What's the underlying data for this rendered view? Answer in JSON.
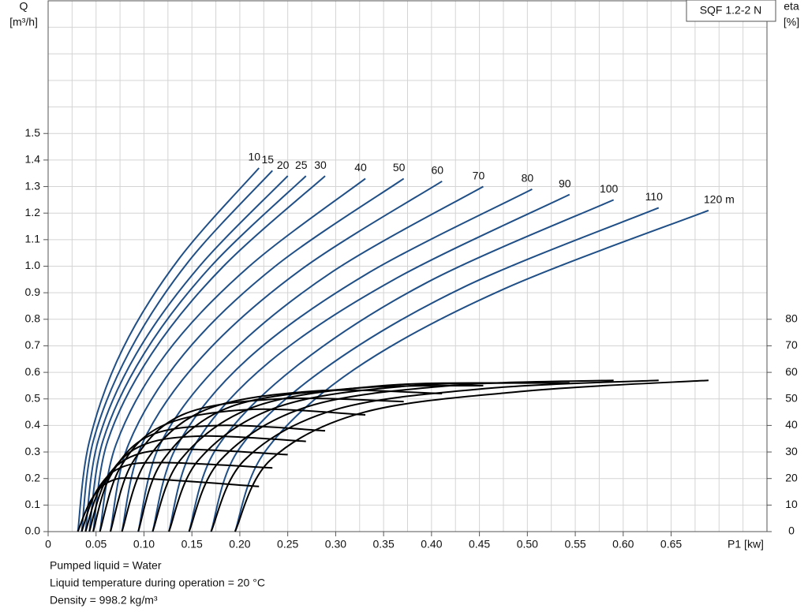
{
  "chart_data": {
    "type": "line",
    "title": "SQF 1.2-2 N",
    "ylabel": "Q",
    "ylabel_unit": "[m³/h]",
    "y2label": "eta",
    "y2label_unit": "[%]",
    "xlabel": "P1 [kw]",
    "xlim": [
      0,
      0.75
    ],
    "ylim": [
      0,
      2.0
    ],
    "y2lim": [
      0,
      200
    ],
    "xticks": [
      0,
      0.05,
      {
        "value": 0.1,
        "label": "0.10"
      },
      0.15,
      {
        "value": 0.2,
        "label": "0.20"
      },
      0.25,
      {
        "value": 0.3,
        "label": "0.30"
      },
      0.35,
      {
        "value": 0.4,
        "label": "0.40"
      },
      0.45,
      {
        "value": 0.5,
        "label": "0.50"
      },
      0.55,
      {
        "value": 0.6,
        "label": "0.60"
      },
      0.65
    ],
    "yticks": [
      {
        "value": 0,
        "label": "0.0"
      },
      0.1,
      0.2,
      0.3,
      0.4,
      0.5,
      0.6,
      0.7,
      0.8,
      0.9,
      {
        "value": 1,
        "label": "1.0"
      },
      1.1,
      1.2,
      1.3,
      1.4,
      1.5
    ],
    "y2ticks": [
      0,
      10,
      20,
      30,
      40,
      50,
      60,
      70,
      80
    ],
    "grid": true,
    "xgrid": [
      0,
      0.025,
      0.05,
      0.075,
      0.1,
      0.125,
      0.15,
      0.175,
      0.2,
      0.225,
      0.25,
      0.275,
      0.3,
      0.325,
      0.35,
      0.375,
      0.4,
      0.425,
      0.45,
      0.475,
      0.5,
      0.525,
      0.55,
      0.575,
      0.6,
      0.625,
      0.65,
      0.675,
      0.7,
      0.725,
      0.75
    ],
    "ygrid": [
      0,
      0.1,
      0.2,
      0.3,
      0.4,
      0.5,
      0.6,
      0.7,
      0.8,
      0.9,
      1,
      1.1,
      1.2,
      1.3,
      1.4,
      1.5,
      1.6,
      1.7,
      1.8,
      1.9,
      2.0
    ],
    "series": [
      {
        "name": "10",
        "color": "#1f4f86",
        "x": [
          0.031,
          0.043,
          0.078,
          0.137,
          0.22
        ],
        "values": [
          0,
          0.34,
          0.69,
          1.03,
          1.37
        ]
      },
      {
        "name": "15",
        "color": "#1f4f86",
        "x": [
          0.035,
          0.047,
          0.085,
          0.147,
          0.234
        ],
        "values": [
          0,
          0.34,
          0.68,
          1.02,
          1.36
        ]
      },
      {
        "name": "20",
        "color": "#1f4f86",
        "x": [
          0.039,
          0.052,
          0.092,
          0.158,
          0.25
        ],
        "values": [
          0,
          0.34,
          0.67,
          1.0,
          1.34
        ]
      },
      {
        "name": "25",
        "color": "#1f4f86",
        "x": [
          0.043,
          0.057,
          0.1,
          0.17,
          0.269
        ],
        "values": [
          0,
          0.34,
          0.67,
          1.0,
          1.34
        ]
      },
      {
        "name": "30",
        "color": "#1f4f86",
        "x": [
          0.047,
          0.062,
          0.108,
          0.183,
          0.289
        ],
        "values": [
          0,
          0.34,
          0.67,
          1.0,
          1.34
        ]
      },
      {
        "name": "40",
        "color": "#1f4f86",
        "x": [
          0.054,
          0.071,
          0.123,
          0.21,
          0.331
        ],
        "values": [
          0,
          0.33,
          0.67,
          1.0,
          1.33
        ]
      },
      {
        "name": "50",
        "color": "#1f4f86",
        "x": [
          0.065,
          0.084,
          0.142,
          0.237,
          0.371
        ],
        "values": [
          0,
          0.33,
          0.67,
          1.0,
          1.33
        ]
      },
      {
        "name": "60",
        "color": "#1f4f86",
        "x": [
          0.077,
          0.098,
          0.161,
          0.265,
          0.411
        ],
        "values": [
          0,
          0.33,
          0.66,
          0.99,
          1.32
        ]
      },
      {
        "name": "70",
        "color": "#1f4f86",
        "x": [
          0.094,
          0.117,
          0.184,
          0.297,
          0.454
        ],
        "values": [
          0,
          0.33,
          0.65,
          0.98,
          1.3
        ]
      },
      {
        "name": "80",
        "color": "#1f4f86",
        "x": [
          0.109,
          0.134,
          0.208,
          0.332,
          0.505
        ],
        "values": [
          0,
          0.32,
          0.65,
          0.97,
          1.29
        ]
      },
      {
        "name": "90",
        "color": "#1f4f86",
        "x": [
          0.126,
          0.152,
          0.231,
          0.361,
          0.544
        ],
        "values": [
          0,
          0.32,
          0.64,
          0.95,
          1.27
        ]
      },
      {
        "name": "100",
        "color": "#1f4f86",
        "x": [
          0.147,
          0.175,
          0.258,
          0.396,
          0.59
        ],
        "values": [
          0,
          0.31,
          0.62,
          0.94,
          1.25
        ]
      },
      {
        "name": "110",
        "color": "#1f4f86",
        "x": [
          0.17,
          0.199,
          0.287,
          0.433,
          0.637
        ],
        "values": [
          0,
          0.31,
          0.61,
          0.92,
          1.22
        ]
      },
      {
        "name": "120 m",
        "color": "#1f4f86",
        "x": [
          0.195,
          0.226,
          0.319,
          0.473,
          0.689
        ],
        "values": [
          0,
          0.3,
          0.61,
          0.91,
          1.21
        ]
      },
      {
        "axis": "y2",
        "color": "#000000",
        "x": [
          0.031,
          0.045,
          0.065,
          0.1,
          0.22
        ],
        "values": [
          0,
          12,
          19,
          20,
          17
        ]
      },
      {
        "axis": "y2",
        "color": "#000000",
        "x": [
          0.035,
          0.05,
          0.075,
          0.12,
          0.234
        ],
        "values": [
          0,
          15,
          24,
          26,
          24
        ]
      },
      {
        "axis": "y2",
        "color": "#000000",
        "x": [
          0.039,
          0.055,
          0.085,
          0.14,
          0.25
        ],
        "values": [
          0,
          17,
          28,
          31,
          29
        ]
      },
      {
        "axis": "y2",
        "color": "#000000",
        "x": [
          0.043,
          0.06,
          0.095,
          0.16,
          0.269
        ],
        "values": [
          0,
          19,
          32,
          36,
          34
        ]
      },
      {
        "axis": "y2",
        "color": "#000000",
        "x": [
          0.047,
          0.065,
          0.105,
          0.18,
          0.289
        ],
        "values": [
          0,
          21,
          36,
          40,
          38
        ]
      },
      {
        "axis": "y2",
        "color": "#000000",
        "x": [
          0.054,
          0.075,
          0.12,
          0.21,
          0.331
        ],
        "values": [
          0,
          24,
          40,
          46,
          44
        ]
      },
      {
        "axis": "y2",
        "color": "#000000",
        "x": [
          0.065,
          0.088,
          0.14,
          0.24,
          0.371
        ],
        "values": [
          0,
          26,
          44,
          50,
          49
        ]
      },
      {
        "axis": "y2",
        "color": "#000000",
        "x": [
          0.077,
          0.103,
          0.165,
          0.28,
          0.411
        ],
        "values": [
          0,
          27,
          46,
          53,
          52
        ]
      },
      {
        "axis": "y2",
        "color": "#000000",
        "x": [
          0.094,
          0.12,
          0.19,
          0.32,
          0.454
        ],
        "values": [
          0,
          27,
          47,
          54,
          55
        ]
      },
      {
        "axis": "y2",
        "color": "#000000",
        "x": [
          0.109,
          0.138,
          0.215,
          0.35,
          0.505
        ],
        "values": [
          0,
          27,
          47,
          55,
          56
        ]
      },
      {
        "axis": "y2",
        "color": "#000000",
        "x": [
          0.126,
          0.157,
          0.24,
          0.38,
          0.544
        ],
        "values": [
          0,
          27,
          47,
          55,
          56
        ]
      },
      {
        "axis": "y2",
        "color": "#000000",
        "x": [
          0.147,
          0.18,
          0.27,
          0.42,
          0.59
        ],
        "values": [
          0,
          27,
          47,
          55,
          57
        ]
      },
      {
        "axis": "y2",
        "color": "#000000",
        "x": [
          0.17,
          0.205,
          0.3,
          0.46,
          0.637
        ],
        "values": [
          0,
          27,
          46,
          54,
          57
        ]
      },
      {
        "axis": "y2",
        "color": "#000000",
        "x": [
          0.195,
          0.232,
          0.33,
          0.5,
          0.689
        ],
        "values": [
          0,
          27,
          45,
          53,
          57
        ]
      }
    ]
  },
  "notes": [
    "Pumped liquid = Water",
    "Liquid temperature during operation = 20 °C",
    "Density = 998.2 kg/m³"
  ]
}
